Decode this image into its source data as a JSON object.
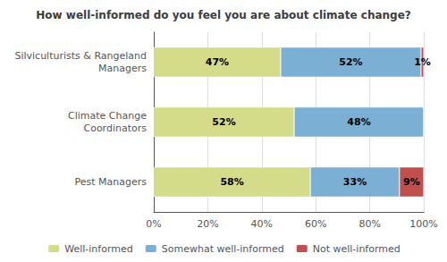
{
  "chart_data": {
    "type": "bar",
    "orientation": "horizontal",
    "stacked": true,
    "title": "How well-informed do you feel you are about climate change?",
    "categories": [
      "Pest Managers",
      "Climate Change\nCoordinators",
      "Silviculturists & Rangeland\nManagers"
    ],
    "series": [
      {
        "name": "Well-informed",
        "color": "#d4dc8a",
        "values": [
          58,
          52,
          47
        ],
        "value_labels": [
          "58%",
          "52%",
          "47%"
        ]
      },
      {
        "name": "Somewhat well-informed",
        "color": "#7bafd4",
        "values": [
          33,
          48,
          52
        ],
        "value_labels": [
          "33%",
          "48%",
          "52%"
        ]
      },
      {
        "name": "Not well-informed",
        "color": "#c0504d",
        "values": [
          9,
          0,
          1
        ],
        "value_labels": [
          "9%",
          null,
          "1%"
        ]
      }
    ],
    "xlim": [
      0,
      100
    ],
    "xticks": [
      {
        "value": 0,
        "label": "0%"
      },
      {
        "value": 20,
        "label": "20%"
      },
      {
        "value": 40,
        "label": "40%"
      },
      {
        "value": 60,
        "label": "60%"
      },
      {
        "value": 80,
        "label": "80%"
      },
      {
        "value": 100,
        "label": "100%"
      }
    ],
    "grid": true,
    "data_labels": true,
    "legend": "bottom"
  }
}
